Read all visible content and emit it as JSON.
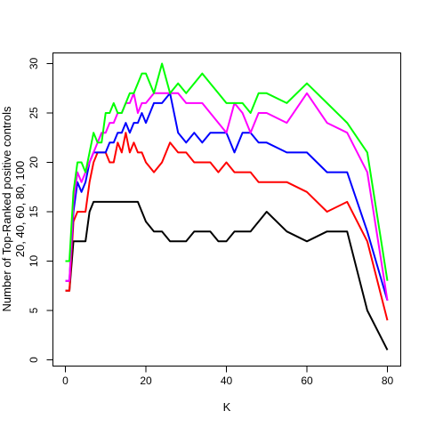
{
  "chart_data": {
    "type": "line",
    "title": "",
    "xlabel": "K",
    "ylabel_line1": "Number of Top-Ranked positive controls",
    "ylabel_line2": "20, 40, 60, 80, 100",
    "xlim": [
      0,
      80
    ],
    "ylim": [
      0,
      30
    ],
    "xticks": [
      0,
      20,
      40,
      60,
      80
    ],
    "yticks": [
      0,
      5,
      10,
      15,
      20,
      25,
      30
    ],
    "grid": false,
    "legend": "none",
    "x": [
      0,
      1,
      2,
      3,
      4,
      5,
      6,
      7,
      8,
      9,
      10,
      11,
      12,
      13,
      14,
      15,
      16,
      17,
      18,
      19,
      20,
      22,
      24,
      26,
      28,
      30,
      32,
      34,
      36,
      38,
      40,
      42,
      44,
      46,
      48,
      50,
      55,
      60,
      65,
      70,
      75,
      80
    ],
    "series": [
      {
        "color": "#000000",
        "values": [
          7,
          7,
          12,
          12,
          12,
          12,
          15,
          16,
          16,
          16,
          16,
          16,
          16,
          16,
          16,
          16,
          16,
          16,
          16,
          15,
          14,
          13,
          13,
          12,
          12,
          12,
          13,
          13,
          13,
          12,
          12,
          13,
          13,
          13,
          14,
          15,
          13,
          12,
          13,
          13,
          5,
          1
        ]
      },
      {
        "color": "#ff0000",
        "values": [
          7,
          7,
          14,
          15,
          15,
          15,
          18,
          20,
          21,
          21,
          21,
          20,
          20,
          22,
          21,
          23,
          21,
          22,
          21,
          21,
          20,
          19,
          20,
          22,
          21,
          21,
          20,
          20,
          20,
          19,
          20,
          19,
          19,
          19,
          18,
          18,
          18,
          17,
          15,
          16,
          12,
          4
        ]
      },
      {
        "color": "#0000ff",
        "values": [
          8,
          8,
          15,
          18,
          17,
          18,
          20,
          21,
          21,
          21,
          21,
          22,
          22,
          23,
          23,
          24,
          23,
          24,
          24,
          25,
          24,
          26,
          26,
          27,
          23,
          22,
          23,
          22,
          23,
          23,
          23,
          21,
          23,
          23,
          22,
          22,
          21,
          21,
          19,
          19,
          13,
          6
        ]
      },
      {
        "color": "#ff00ff",
        "values": [
          8,
          8,
          16,
          19,
          18,
          19,
          20,
          21,
          22,
          23,
          23,
          24,
          24,
          25,
          25,
          26,
          26,
          27,
          25,
          26,
          26,
          27,
          27,
          27,
          27,
          26,
          26,
          26,
          25,
          24,
          23,
          26,
          25,
          23,
          25,
          25,
          24,
          27,
          24,
          23,
          19,
          6
        ]
      },
      {
        "color": "#00ff00",
        "values": [
          10,
          10,
          17,
          20,
          20,
          19,
          21,
          23,
          22,
          22,
          25,
          25,
          26,
          25,
          25,
          26,
          27,
          27,
          28,
          29,
          29,
          27,
          30,
          27,
          28,
          27,
          28,
          29,
          28,
          27,
          26,
          26,
          26,
          25,
          27,
          27,
          26,
          28,
          26,
          24,
          21,
          8
        ]
      }
    ]
  }
}
